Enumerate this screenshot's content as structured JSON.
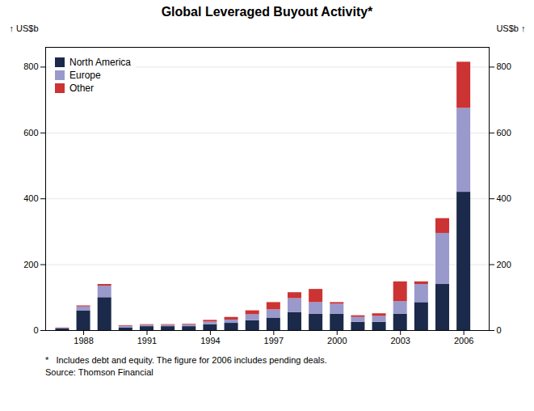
{
  "chart_data": {
    "type": "bar",
    "title": "Global Leveraged Buyout Activity*",
    "x": [
      1987,
      1988,
      1989,
      1990,
      1991,
      1992,
      1993,
      1994,
      1995,
      1996,
      1997,
      1998,
      1999,
      2000,
      2001,
      2002,
      2003,
      2004,
      2005,
      2006
    ],
    "series": [
      {
        "name": "North America",
        "color": "#1b2a4a",
        "values": [
          5,
          60,
          100,
          8,
          12,
          12,
          12,
          18,
          22,
          30,
          38,
          55,
          50,
          50,
          25,
          25,
          50,
          85,
          140,
          420
        ]
      },
      {
        "name": "Europe",
        "color": "#9999cc",
        "values": [
          2,
          12,
          35,
          5,
          4,
          4,
          5,
          8,
          10,
          18,
          25,
          42,
          35,
          30,
          15,
          18,
          38,
          55,
          155,
          255
        ]
      },
      {
        "name": "Other",
        "color": "#cc3333",
        "values": [
          1,
          3,
          5,
          2,
          2,
          2,
          2,
          5,
          8,
          12,
          22,
          18,
          40,
          5,
          5,
          8,
          60,
          8,
          45,
          140
        ]
      }
    ],
    "stacked": true,
    "xlim": [
      1986.2,
      2007.2
    ],
    "xticks": [
      1988,
      1991,
      1994,
      1997,
      2000,
      2003,
      2006
    ],
    "ylim": [
      0,
      860
    ],
    "yticks": [
      0,
      200,
      400,
      600,
      800
    ],
    "ylabel": "US$b",
    "y2lim": [
      0,
      860
    ],
    "y2ticks": [
      0,
      200,
      400,
      600,
      800
    ],
    "y2label": "US$b",
    "grid": true,
    "legend": "upper left",
    "annotations": [
      "*   Includes debt and equity. The figure for 2006 includes pending deals.",
      "Source: Thomson Financial"
    ]
  }
}
